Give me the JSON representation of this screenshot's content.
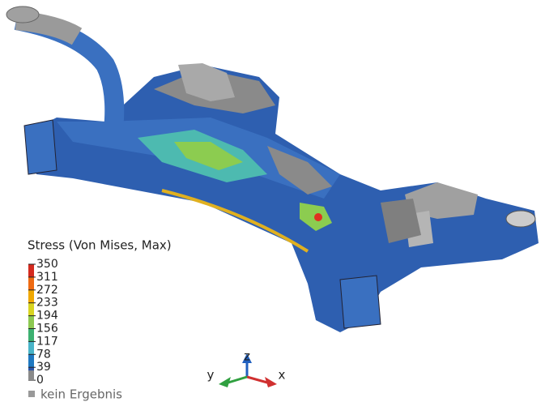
{
  "legend": {
    "title": "Stress (Von Mises, Max)",
    "ticks": [
      350,
      311,
      272,
      233,
      194,
      156,
      117,
      78,
      39,
      0
    ],
    "no_result": "kein Ergebnis"
  },
  "axes": {
    "x": "x",
    "y": "y",
    "z": "z"
  }
}
